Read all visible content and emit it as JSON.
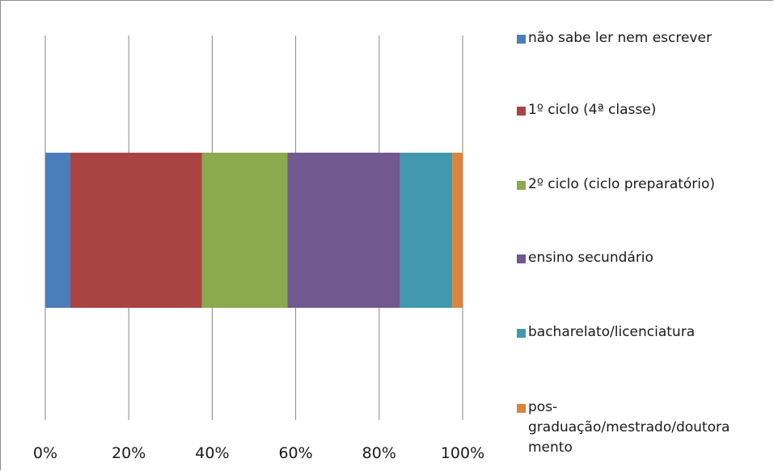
{
  "chart_data": {
    "type": "bar",
    "orientation": "horizontal",
    "stacked": "percent",
    "categories": [
      ""
    ],
    "series": [
      {
        "name": "não sabe ler nem escrever",
        "values": [
          6
        ],
        "color": "#4a7ebb"
      },
      {
        "name": "1º ciclo (4ª classe)",
        "values": [
          31.5
        ],
        "color": "#a94442"
      },
      {
        "name": "2º ciclo (ciclo preparatório)",
        "values": [
          20.5
        ],
        "color": "#8ba94f"
      },
      {
        "name": "ensino secundário",
        "values": [
          27
        ],
        "color": "#71588f"
      },
      {
        "name": "bacharelato/licenciatura",
        "values": [
          12.5
        ],
        "color": "#4198af"
      },
      {
        "name": "pos-graduação/mestrado/doutoramento",
        "values": [
          2.5
        ],
        "color": "#db843d"
      }
    ],
    "x_ticks": [
      "0%",
      "20%",
      "40%",
      "60%",
      "80%",
      "100%"
    ],
    "xlim": [
      0,
      100
    ],
    "grid": "vertical",
    "legend_position": "right",
    "title": "",
    "xlabel": "",
    "ylabel": ""
  },
  "legend_lines": [
    [
      "não sabe ler nem escrever"
    ],
    [
      "1º ciclo (4ª classe)"
    ],
    [
      "2º ciclo (ciclo preparatório)"
    ],
    [
      "ensino secundário"
    ],
    [
      "bacharelato/licenciatura"
    ],
    [
      "pos-",
      "graduação/mestrado/doutora",
      "mento"
    ]
  ]
}
